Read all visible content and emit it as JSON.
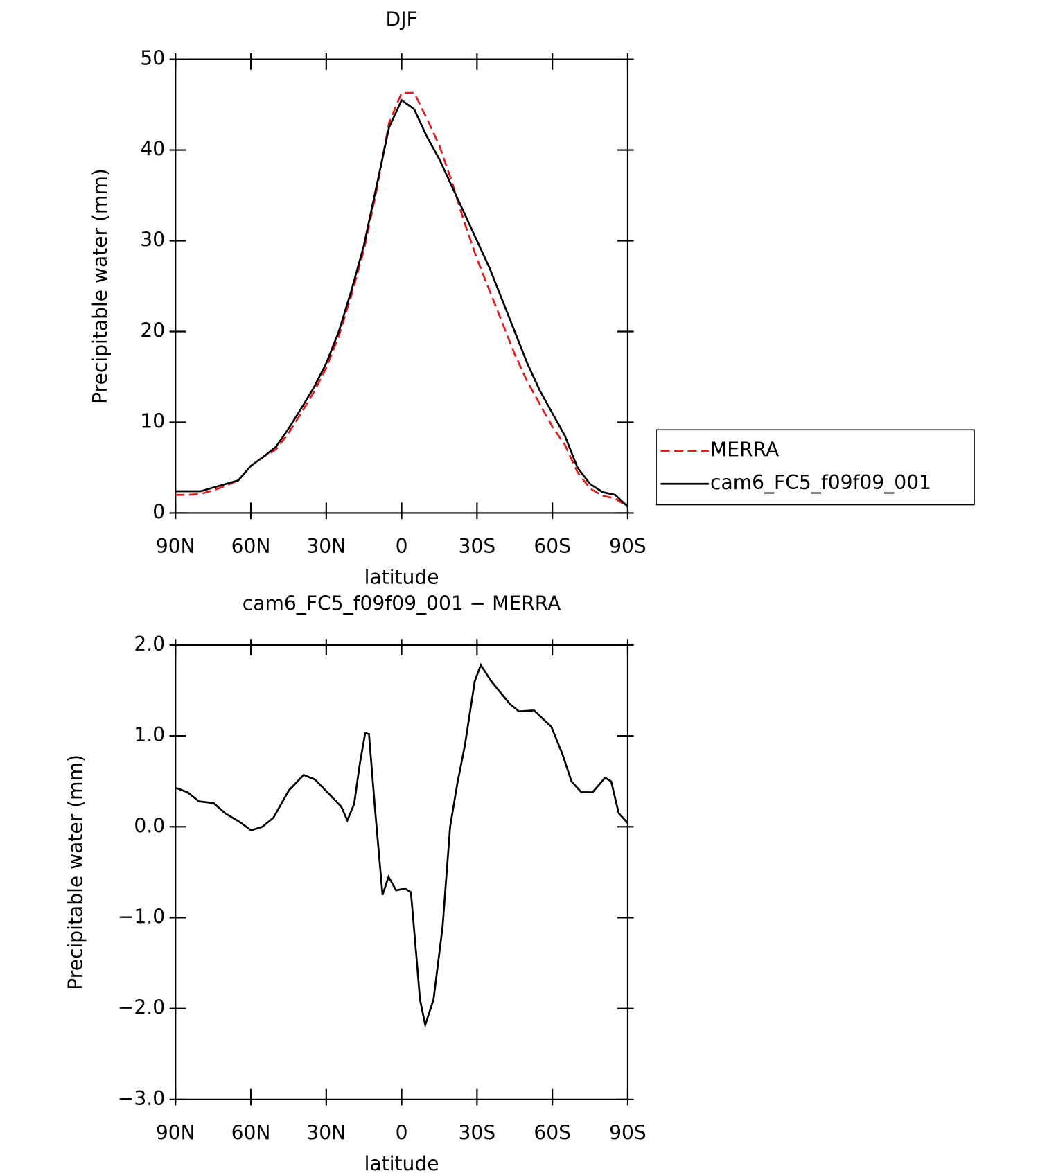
{
  "chart_data": [
    {
      "type": "line",
      "title": "DJF",
      "x_label": "latitude",
      "y_label": "Precipitable water (mm)",
      "xlim": [
        90,
        -90
      ],
      "xticks": [
        {
          "value": 90,
          "label": "90N"
        },
        {
          "value": 60,
          "label": "60N"
        },
        {
          "value": 30,
          "label": "30N"
        },
        0,
        {
          "value": -30,
          "label": "30S"
        },
        {
          "value": -60,
          "label": "60S"
        },
        {
          "value": -90,
          "label": "90S"
        }
      ],
      "ylim": [
        0,
        50
      ],
      "yticks": [
        0,
        10,
        20,
        30,
        40,
        50
      ],
      "legend": "right",
      "x": [
        90,
        85,
        80,
        75,
        70,
        65,
        60,
        55,
        50,
        45,
        40,
        35,
        30,
        25,
        20,
        15,
        10,
        5,
        0,
        -5,
        -10,
        -15,
        -20,
        -25,
        -30,
        -35,
        -40,
        -45,
        -50,
        -55,
        -60,
        -65,
        -70,
        -75,
        -80,
        -85,
        -90
      ],
      "series": [
        {
          "name": "MERRA",
          "color": "#e41a1c",
          "line_style": "dashed",
          "values": [
            2.0,
            2.0,
            2.1,
            2.5,
            3.0,
            3.6,
            5.2,
            6.2,
            7.0,
            8.8,
            11,
            13.3,
            16,
            19.5,
            24,
            29,
            35.5,
            43,
            46.3,
            46.3,
            43.5,
            40.5,
            36.5,
            32,
            28,
            24.5,
            21,
            17.5,
            14.5,
            12,
            9.5,
            7.5,
            4.5,
            2.7,
            1.9,
            1.6,
            0.7
          ]
        },
        {
          "name": "cam6_FC5_f09f09_001",
          "color": "#000000",
          "line_style": "solid",
          "values": [
            2.4,
            2.4,
            2.4,
            2.8,
            3.2,
            3.6,
            5.2,
            6.2,
            7.3,
            9.3,
            11.5,
            13.8,
            16.5,
            20,
            24.5,
            29.5,
            36,
            42.5,
            45.5,
            44.5,
            41.5,
            39,
            36,
            33,
            30,
            27,
            23.5,
            20,
            16.5,
            13.5,
            11,
            8.5,
            5,
            3.2,
            2.3,
            2.0,
            0.7
          ]
        }
      ]
    },
    {
      "type": "line",
      "title": "cam6_FC5_f09f09_001 − MERRA",
      "x_label": "latitude",
      "y_label": "Precipitable water (mm)",
      "xlim": [
        90,
        -90
      ],
      "xticks": [
        {
          "value": 90,
          "label": "90N"
        },
        {
          "value": 60,
          "label": "60N"
        },
        {
          "value": 30,
          "label": "30N"
        },
        0,
        {
          "value": -30,
          "label": "30S"
        },
        {
          "value": -60,
          "label": "60S"
        },
        {
          "value": -90,
          "label": "90S"
        }
      ],
      "ylim": [
        -3,
        2
      ],
      "yticks": [
        {
          "value": -3,
          "label": "−3.0"
        },
        {
          "value": -2,
          "label": "−2.0"
        },
        {
          "value": -1,
          "label": "−1.0"
        },
        {
          "value": 0,
          "label": "0.0"
        },
        {
          "value": 1,
          "label": "1.0"
        },
        {
          "value": 2,
          "label": "2.0"
        }
      ],
      "x": [
        90,
        85.2,
        80.7,
        74.8,
        70.3,
        64.3,
        59.9,
        55.4,
        51,
        44.9,
        39,
        34.5,
        28.5,
        24,
        21.6,
        18.9,
        16.6,
        14.5,
        13,
        10.6,
        7.6,
        5.2,
        2.2,
        -1.3,
        -3.7,
        -5.8,
        -7.3,
        -9.4,
        -12.7,
        -16.3,
        -19.3,
        -22.2,
        -25.2,
        -29.1,
        -31.5,
        -35.7,
        -43.1,
        -46.7,
        -52.7,
        -59.6,
        -64,
        -67.6,
        -71.5,
        -76,
        -81,
        -83.4,
        -86.4,
        -90
      ],
      "series": [
        {
          "color": "#000000",
          "values": [
            0.43,
            0.38,
            0.28,
            0.26,
            0.15,
            0.05,
            -0.04,
            0.0,
            0.1,
            0.4,
            0.57,
            0.52,
            0.35,
            0.22,
            0.07,
            0.25,
            0.7,
            1.03,
            1.02,
            0.2,
            -0.75,
            -0.55,
            -0.7,
            -0.68,
            -0.72,
            -1.4,
            -1.9,
            -2.18,
            -1.9,
            -1.1,
            0.0,
            0.48,
            0.9,
            1.6,
            1.78,
            1.6,
            1.35,
            1.27,
            1.28,
            1.1,
            0.8,
            0.5,
            0.38,
            0.38,
            0.54,
            0.5,
            0.15,
            0.04
          ]
        }
      ]
    }
  ]
}
